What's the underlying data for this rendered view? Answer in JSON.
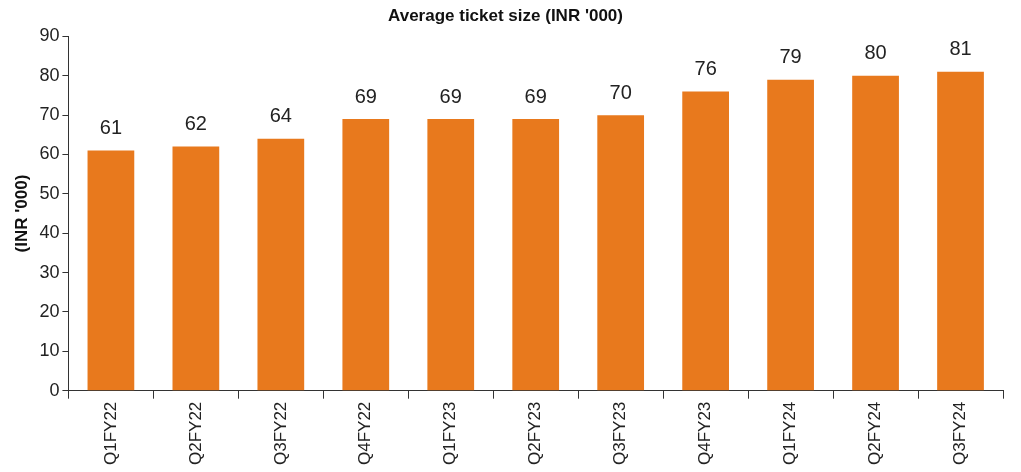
{
  "chart_data": {
    "type": "bar",
    "title": "Average ticket size (INR '000)",
    "ylabel": "(INR '000)",
    "categories": [
      "Q1FY22",
      "Q2FY22",
      "Q3FY22",
      "Q4FY22",
      "Q1FY23",
      "Q2FY23",
      "Q3FY23",
      "Q4FY23",
      "Q1FY24",
      "Q2FY24",
      "Q3FY24"
    ],
    "values": [
      61,
      62,
      64,
      69,
      69,
      69,
      70,
      76,
      79,
      80,
      81
    ],
    "color": "#e8791d",
    "ylim": [
      0,
      90
    ],
    "yticks": [
      0,
      10,
      20,
      30,
      40,
      50,
      60,
      70,
      80,
      90
    ],
    "data_labels": true
  }
}
